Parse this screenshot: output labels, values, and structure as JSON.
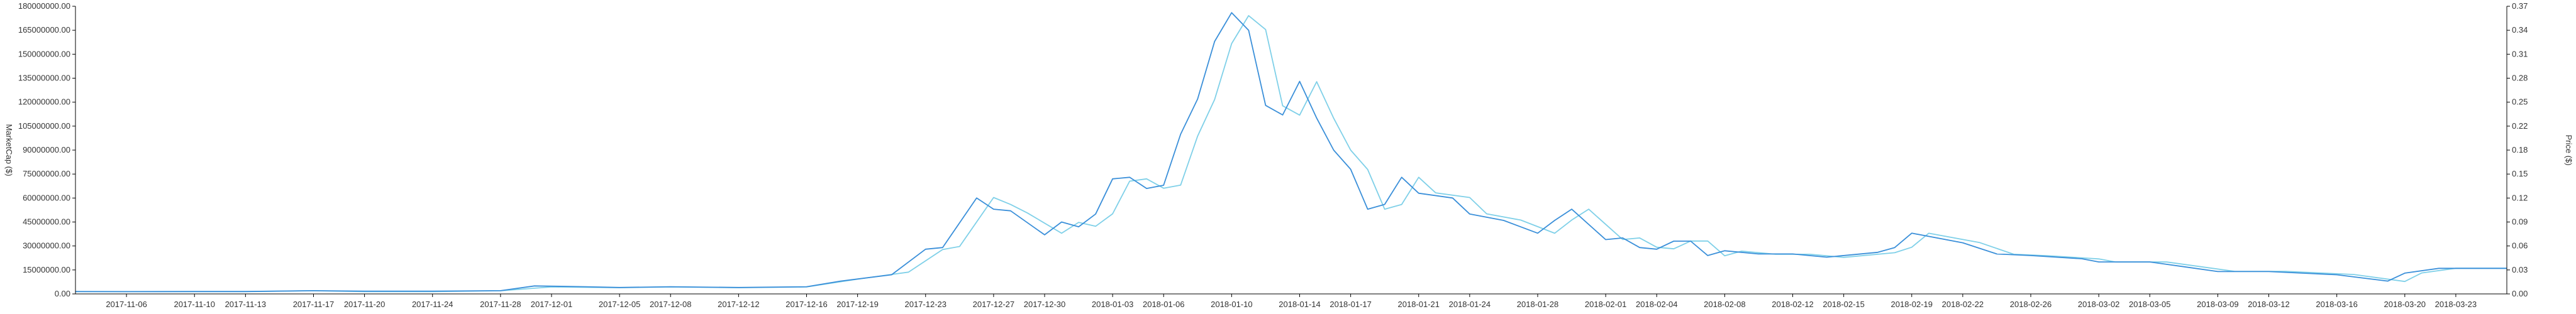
{
  "chart_data": {
    "type": "line",
    "x_tick_labels": [
      "2017-11-06",
      "2017-11-10",
      "2017-11-13",
      "2017-11-17",
      "2017-11-20",
      "2017-11-24",
      "2017-11-28",
      "2017-12-01",
      "2017-12-05",
      "2017-12-08",
      "2017-12-12",
      "2017-12-16",
      "2017-12-19",
      "2017-12-23",
      "2017-12-27",
      "2017-12-30",
      "2018-01-03",
      "2018-01-06",
      "2018-01-10",
      "2018-01-14",
      "2018-01-17",
      "2018-01-21",
      "2018-01-24",
      "2018-01-28",
      "2018-02-01",
      "2018-02-04",
      "2018-02-08",
      "2018-02-12",
      "2018-02-15",
      "2018-02-19",
      "2018-02-22",
      "2018-02-26",
      "2018-03-02",
      "2018-03-05",
      "2018-03-09",
      "2018-03-12",
      "2018-03-16",
      "2018-03-20",
      "2018-03-23"
    ],
    "x_range": [
      "2017-11-03",
      "2018-03-26"
    ],
    "left_axis": {
      "title": "MarketCap ($)",
      "ylim": [
        0,
        180000000
      ],
      "tick_labels": [
        "0.00",
        "15000000.00",
        "30000000.00",
        "45000000.00",
        "60000000.00",
        "75000000.00",
        "90000000.00",
        "105000000.00",
        "120000000.00",
        "135000000.00",
        "150000000.00",
        "165000000.00",
        "180000000.00"
      ]
    },
    "right_axis": {
      "title": "Price ($)",
      "ylim": [
        0,
        0.37
      ],
      "tick_labels": [
        "0.00",
        "0.03",
        "0.06",
        "0.09",
        "0.12",
        "0.15",
        "0.18",
        "0.22",
        "0.25",
        "0.28",
        "0.31",
        "0.34",
        "0.37"
      ]
    },
    "grid": false,
    "series": [
      {
        "axis": "left",
        "color": "#3a8fd9",
        "points": [
          [
            "2017-11-03",
            1500000
          ],
          [
            "2017-11-06",
            1400000
          ],
          [
            "2017-11-10",
            1500000
          ],
          [
            "2017-11-13",
            1500000
          ],
          [
            "2017-11-17",
            2000000
          ],
          [
            "2017-11-20",
            1700000
          ],
          [
            "2017-11-24",
            1700000
          ],
          [
            "2017-11-28",
            2000000
          ],
          [
            "2017-11-30",
            5000000
          ],
          [
            "2017-12-03",
            4500000
          ],
          [
            "2017-12-05",
            4000000
          ],
          [
            "2017-12-08",
            4500000
          ],
          [
            "2017-12-12",
            4000000
          ],
          [
            "2017-12-16",
            4500000
          ],
          [
            "2017-12-18",
            8000000
          ],
          [
            "2017-12-21",
            12000000
          ],
          [
            "2017-12-23",
            28000000
          ],
          [
            "2017-12-24",
            29000000
          ],
          [
            "2017-12-26",
            60000000
          ],
          [
            "2017-12-27",
            53000000
          ],
          [
            "2017-12-28",
            52000000
          ],
          [
            "2017-12-30",
            37000000
          ],
          [
            "2017-12-31",
            45000000
          ],
          [
            "2018-01-01",
            42000000
          ],
          [
            "2018-01-02",
            50000000
          ],
          [
            "2018-01-03",
            72000000
          ],
          [
            "2018-01-04",
            73000000
          ],
          [
            "2018-01-05",
            66000000
          ],
          [
            "2018-01-06",
            68000000
          ],
          [
            "2018-01-07",
            100000000
          ],
          [
            "2018-01-08",
            122000000
          ],
          [
            "2018-01-09",
            158000000
          ],
          [
            "2018-01-10",
            176000000
          ],
          [
            "2018-01-11",
            165000000
          ],
          [
            "2018-01-12",
            118000000
          ],
          [
            "2018-01-13",
            112000000
          ],
          [
            "2018-01-14",
            133000000
          ],
          [
            "2018-01-15",
            110000000
          ],
          [
            "2018-01-16",
            90000000
          ],
          [
            "2018-01-17",
            78000000
          ],
          [
            "2018-01-18",
            53000000
          ],
          [
            "2018-01-19",
            56000000
          ],
          [
            "2018-01-20",
            73000000
          ],
          [
            "2018-01-21",
            63000000
          ],
          [
            "2018-01-23",
            60000000
          ],
          [
            "2018-01-24",
            50000000
          ],
          [
            "2018-01-26",
            46000000
          ],
          [
            "2018-01-28",
            38000000
          ],
          [
            "2018-01-29",
            46000000
          ],
          [
            "2018-01-30",
            53000000
          ],
          [
            "2018-02-01",
            34000000
          ],
          [
            "2018-02-02",
            35000000
          ],
          [
            "2018-02-03",
            29000000
          ],
          [
            "2018-02-04",
            28000000
          ],
          [
            "2018-02-05",
            33000000
          ],
          [
            "2018-02-06",
            33000000
          ],
          [
            "2018-02-07",
            24000000
          ],
          [
            "2018-02-08",
            27000000
          ],
          [
            "2018-02-10",
            25000000
          ],
          [
            "2018-02-12",
            25000000
          ],
          [
            "2018-02-14",
            23000000
          ],
          [
            "2018-02-17",
            26000000
          ],
          [
            "2018-02-18",
            29000000
          ],
          [
            "2018-02-19",
            38000000
          ],
          [
            "2018-02-22",
            32000000
          ],
          [
            "2018-02-24",
            25000000
          ],
          [
            "2018-02-26",
            24000000
          ],
          [
            "2018-03-01",
            22000000
          ],
          [
            "2018-03-02",
            20000000
          ],
          [
            "2018-03-05",
            20000000
          ],
          [
            "2018-03-07",
            17000000
          ],
          [
            "2018-03-09",
            14000000
          ],
          [
            "2018-03-12",
            14000000
          ],
          [
            "2018-03-16",
            12000000
          ],
          [
            "2018-03-19",
            8000000
          ],
          [
            "2018-03-20",
            13000000
          ],
          [
            "2018-03-22",
            16000000
          ],
          [
            "2018-03-26",
            16000000
          ]
        ]
      },
      {
        "axis": "right",
        "color": "#7fd0e8",
        "points": [
          [
            "2017-11-03",
            0.003
          ],
          [
            "2017-11-06",
            0.003
          ],
          [
            "2017-11-10",
            0.003
          ],
          [
            "2017-11-13",
            0.003
          ],
          [
            "2017-11-17",
            0.004
          ],
          [
            "2017-11-20",
            0.003
          ],
          [
            "2017-11-24",
            0.003
          ],
          [
            "2017-11-28",
            0.004
          ],
          [
            "2017-12-01",
            0.009
          ],
          [
            "2017-12-05",
            0.008
          ],
          [
            "2017-12-08",
            0.009
          ],
          [
            "2017-12-12",
            0.008
          ],
          [
            "2017-12-16",
            0.009
          ],
          [
            "2017-12-19",
            0.019
          ],
          [
            "2017-12-22",
            0.028
          ],
          [
            "2017-12-24",
            0.057
          ],
          [
            "2017-12-25",
            0.061
          ],
          [
            "2017-12-27",
            0.124
          ],
          [
            "2017-12-28",
            0.115
          ],
          [
            "2017-12-29",
            0.104
          ],
          [
            "2017-12-31",
            0.078
          ],
          [
            "2018-01-01",
            0.092
          ],
          [
            "2018-01-02",
            0.087
          ],
          [
            "2018-01-03",
            0.103
          ],
          [
            "2018-01-04",
            0.145
          ],
          [
            "2018-01-05",
            0.148
          ],
          [
            "2018-01-06",
            0.136
          ],
          [
            "2018-01-07",
            0.14
          ],
          [
            "2018-01-08",
            0.203
          ],
          [
            "2018-01-09",
            0.25
          ],
          [
            "2018-01-10",
            0.322
          ],
          [
            "2018-01-11",
            0.358
          ],
          [
            "2018-01-12",
            0.34
          ],
          [
            "2018-01-13",
            0.242
          ],
          [
            "2018-01-14",
            0.23
          ],
          [
            "2018-01-15",
            0.273
          ],
          [
            "2018-01-16",
            0.226
          ],
          [
            "2018-01-17",
            0.185
          ],
          [
            "2018-01-18",
            0.16
          ],
          [
            "2018-01-19",
            0.109
          ],
          [
            "2018-01-20",
            0.115
          ],
          [
            "2018-01-21",
            0.15
          ],
          [
            "2018-01-22",
            0.13
          ],
          [
            "2018-01-24",
            0.124
          ],
          [
            "2018-01-25",
            0.103
          ],
          [
            "2018-01-27",
            0.095
          ],
          [
            "2018-01-29",
            0.078
          ],
          [
            "2018-01-30",
            0.095
          ],
          [
            "2018-01-31",
            0.109
          ],
          [
            "2018-02-02",
            0.07
          ],
          [
            "2018-02-03",
            0.072
          ],
          [
            "2018-02-04",
            0.06
          ],
          [
            "2018-02-05",
            0.058
          ],
          [
            "2018-02-06",
            0.068
          ],
          [
            "2018-02-07",
            0.068
          ],
          [
            "2018-02-08",
            0.049
          ],
          [
            "2018-02-09",
            0.055
          ],
          [
            "2018-02-11",
            0.051
          ],
          [
            "2018-02-13",
            0.051
          ],
          [
            "2018-02-15",
            0.047
          ],
          [
            "2018-02-18",
            0.053
          ],
          [
            "2018-02-19",
            0.06
          ],
          [
            "2018-02-20",
            0.078
          ],
          [
            "2018-02-23",
            0.066
          ],
          [
            "2018-02-25",
            0.051
          ],
          [
            "2018-02-27",
            0.049
          ],
          [
            "2018-03-02",
            0.045
          ],
          [
            "2018-03-03",
            0.041
          ],
          [
            "2018-03-06",
            0.041
          ],
          [
            "2018-03-08",
            0.035
          ],
          [
            "2018-03-10",
            0.029
          ],
          [
            "2018-03-13",
            0.029
          ],
          [
            "2018-03-17",
            0.025
          ],
          [
            "2018-03-20",
            0.016
          ],
          [
            "2018-03-21",
            0.027
          ],
          [
            "2018-03-23",
            0.033
          ],
          [
            "2018-03-26",
            0.033
          ]
        ]
      }
    ]
  }
}
